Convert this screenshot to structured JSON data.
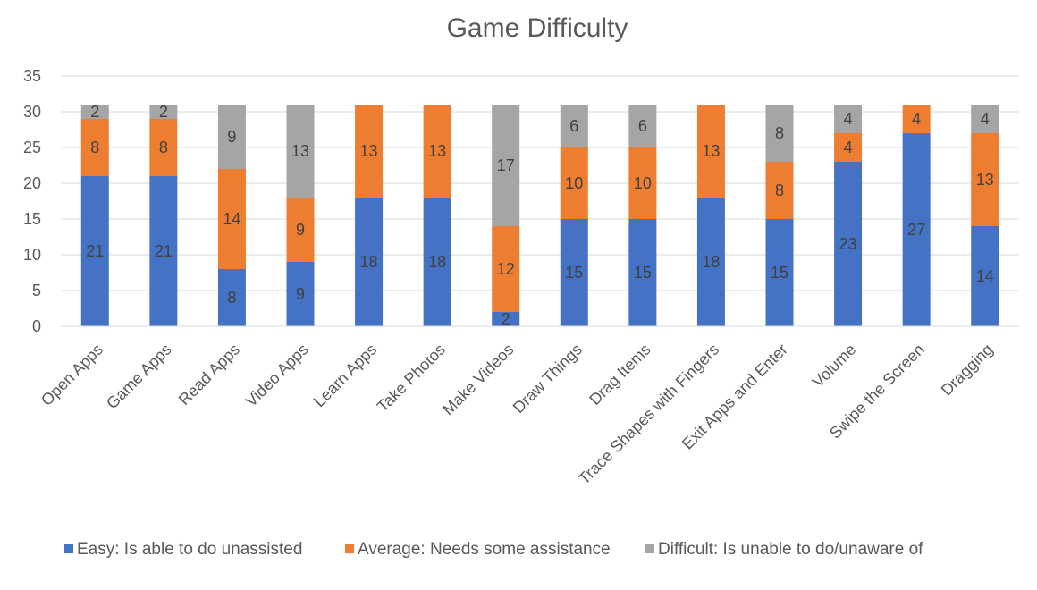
{
  "chart_data": {
    "type": "bar",
    "stacked": true,
    "title": "Game Difficulty",
    "xlabel": "",
    "ylabel": "",
    "ylim": [
      0,
      35
    ],
    "yticks": [
      0,
      5,
      10,
      15,
      20,
      25,
      30,
      35
    ],
    "grid": true,
    "legend_position": "bottom",
    "categories": [
      "Open Apps",
      "Game Apps",
      "Read Apps",
      "Video Apps",
      "Learn Apps",
      "Take Photos",
      "Make Videos",
      "Draw Things",
      "Drag Items",
      "Trace Shapes with Fingers",
      "Exit Apps and Enter",
      "Volume",
      "Swipe the Screen",
      "Dragging"
    ],
    "series": [
      {
        "name": "Easy: Is able to do unassisted",
        "color": "#4472c4",
        "values": [
          21,
          21,
          8,
          9,
          18,
          18,
          2,
          15,
          15,
          18,
          15,
          23,
          27,
          14
        ]
      },
      {
        "name": "Average: Needs some assistance",
        "color": "#ed7d31",
        "values": [
          8,
          8,
          14,
          9,
          13,
          13,
          12,
          10,
          10,
          13,
          8,
          4,
          4,
          13
        ]
      },
      {
        "name": "Difficult: Is unable to do/unaware of",
        "color": "#a5a5a5",
        "values": [
          2,
          2,
          9,
          13,
          null,
          null,
          17,
          6,
          6,
          null,
          8,
          4,
          null,
          4
        ]
      }
    ]
  }
}
